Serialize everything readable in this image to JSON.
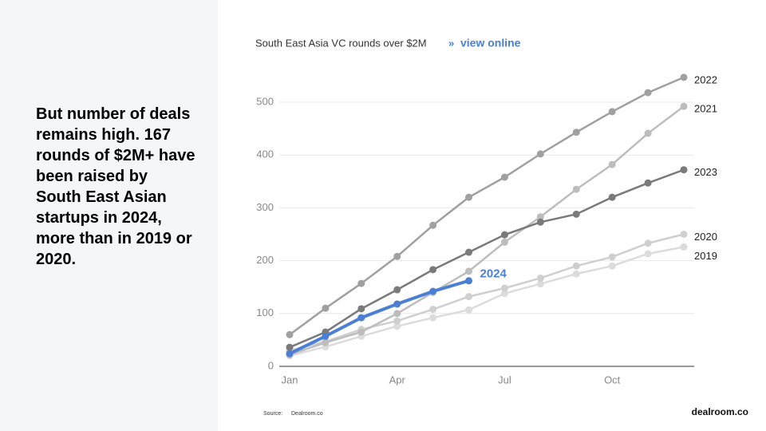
{
  "slide": {
    "heading": "But number of deals remains high. 167 rounds of $2M+ have been raised by South East Asian startups in 2024, more than in 2019 or 2020.",
    "source_label": "Source:",
    "source": "Dealroom.co",
    "logo": "dealroom.co"
  },
  "chart_data": {
    "type": "line",
    "title": "South East Asia VC rounds over $2M",
    "link_marker": "»",
    "link": "view online",
    "categories": [
      "Jan",
      null,
      null,
      "Apr",
      null,
      null,
      "Jul",
      null,
      null,
      "Oct",
      null,
      null
    ],
    "ylim": [
      0,
      540
    ],
    "yticks": [
      0,
      100,
      200,
      300,
      400,
      500
    ],
    "grid": true,
    "series": [
      {
        "name": "2019",
        "color": "#dcdcdc",
        "values": [
          20,
          37,
          57,
          76,
          92,
          107,
          138,
          156,
          175,
          190,
          213,
          226
        ]
      },
      {
        "name": "2020",
        "color": "#cfcfcf",
        "values": [
          30,
          47,
          70,
          86,
          108,
          132,
          148,
          167,
          190,
          207,
          233,
          250
        ]
      },
      {
        "name": "2021",
        "color": "#bdbdbd",
        "values": [
          22,
          45,
          65,
          100,
          140,
          180,
          235,
          283,
          335,
          382,
          441,
          492
        ]
      },
      {
        "name": "2022",
        "color": "#a0a0a0",
        "values": [
          60,
          110,
          157,
          208,
          267,
          320,
          358,
          402,
          443,
          482,
          518,
          547
        ]
      },
      {
        "name": "2023",
        "color": "#7a7a7a",
        "values": [
          36,
          65,
          109,
          145,
          183,
          216,
          249,
          273,
          288,
          320,
          347,
          372
        ]
      },
      {
        "name": "2024",
        "color": "#4a7fd4",
        "values": [
          24,
          57,
          92,
          118,
          142,
          162,
          null,
          null,
          null,
          null,
          null,
          null
        ]
      }
    ]
  }
}
